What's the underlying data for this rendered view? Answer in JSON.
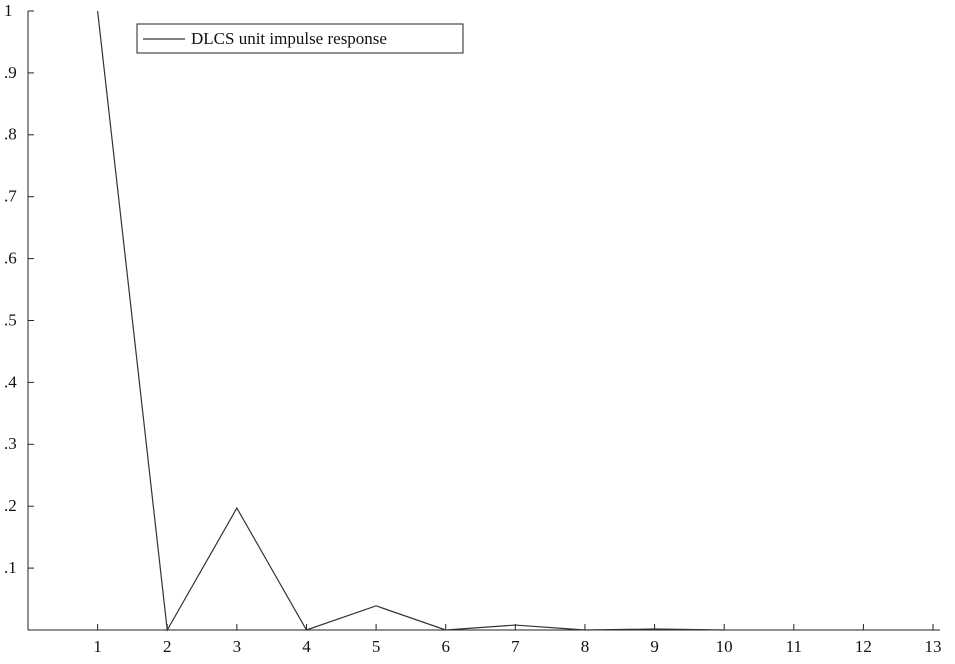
{
  "chart_data": {
    "type": "line",
    "x": [
      1,
      2,
      3,
      4,
      5,
      6,
      7,
      8,
      9,
      10
    ],
    "xlim": [
      0,
      13.1
    ],
    "xticks": [
      1,
      2,
      3,
      4,
      5,
      6,
      7,
      8,
      9,
      10,
      11,
      12,
      13
    ],
    "ylim": [
      0,
      1
    ],
    "yticks": [
      {
        "value": 0.1,
        "label": ".1"
      },
      {
        "value": 0.2,
        "label": ".2"
      },
      {
        "value": 0.3,
        "label": ".3"
      },
      {
        "value": 0.4,
        "label": ".4"
      },
      {
        "value": 0.5,
        "label": ".5"
      },
      {
        "value": 0.6,
        "label": ".6"
      },
      {
        "value": 0.7,
        "label": ".7"
      },
      {
        "value": 0.8,
        "label": ".8"
      },
      {
        "value": 0.9,
        "label": ".9"
      },
      1
    ],
    "grid": false,
    "legend": "top-left",
    "series": [
      {
        "name": "DLCS unit impulse response",
        "color": "#333333",
        "values": [
          1,
          0,
          0.197,
          0,
          0.039,
          0,
          0.008,
          0,
          0.0016,
          0
        ]
      }
    ]
  }
}
